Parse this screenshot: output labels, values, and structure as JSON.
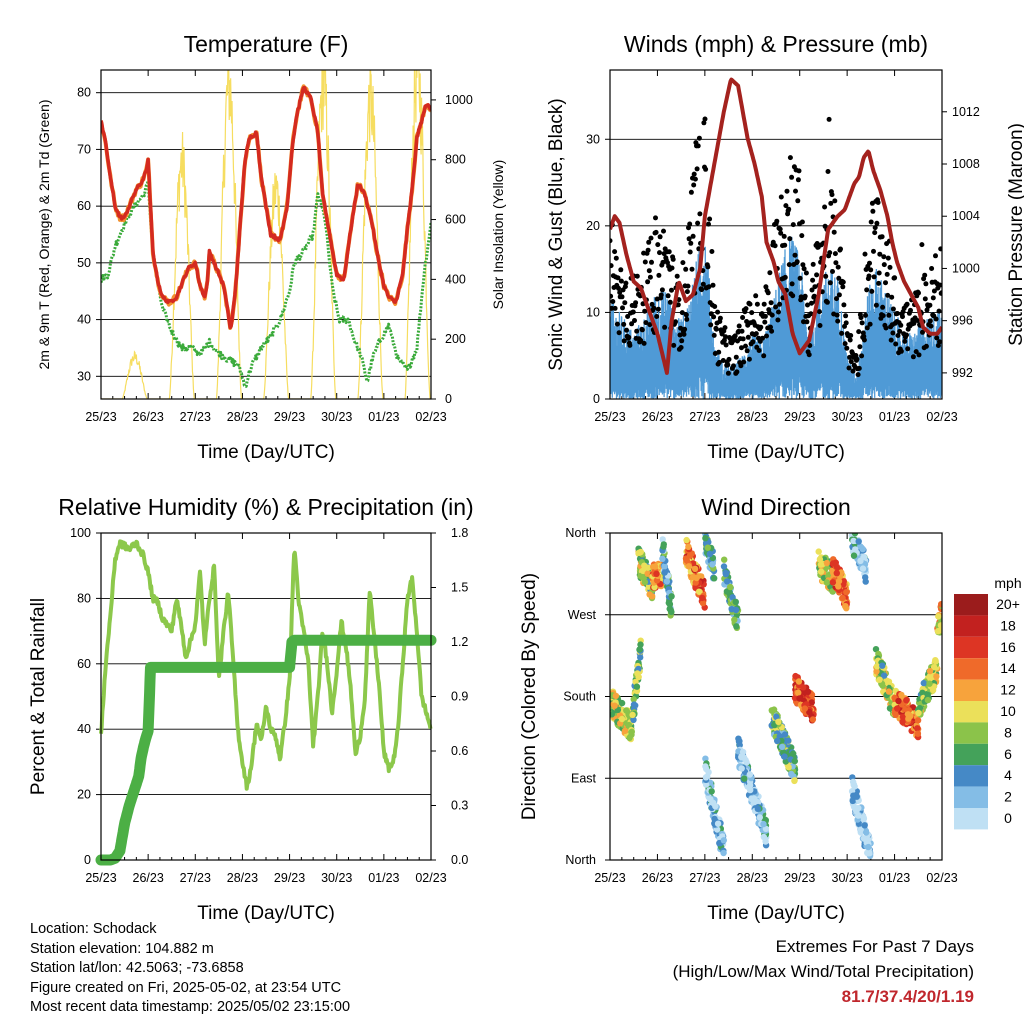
{
  "chart_data": [
    {
      "type": "line",
      "title": "Temperature (F)",
      "xlabel": "Time (Day/UTC)",
      "ylabel_left": "2m & 9m T (Red, Orange) & 2m Td (Green)",
      "ylabel_right": "Solar Insolation (Yellow)",
      "x_ticks": [
        "25/23",
        "26/23",
        "27/23",
        "28/23",
        "29/23",
        "30/23",
        "01/23",
        "02/23"
      ],
      "ylim_left": [
        26,
        84
      ],
      "y_ticks_left": [
        30,
        40,
        50,
        60,
        70,
        80
      ],
      "ylim_right": [
        0,
        1100
      ],
      "y_ticks_right": [
        0,
        200,
        400,
        600,
        800,
        1000
      ],
      "colors": {
        "t2m": "#d42a20",
        "t9m": "#f2902e",
        "td": "#3aaa3a",
        "solar": "#f6dd60"
      },
      "series": [
        {
          "key": "t2m",
          "x": [
            0,
            0.1,
            0.2,
            0.3,
            0.4,
            0.5,
            0.6,
            0.7,
            0.75,
            0.85,
            0.95,
            1.0,
            1.05,
            1.1,
            1.2,
            1.3,
            1.45,
            1.6,
            1.75,
            1.85,
            2.0,
            2.1,
            2.2,
            2.25,
            2.3,
            2.4,
            2.5,
            2.6,
            2.7,
            2.75,
            2.85,
            3.0,
            3.05,
            3.15,
            3.3,
            3.4,
            3.6,
            3.8,
            3.95,
            4.05,
            4.15,
            4.3,
            4.45,
            4.6,
            4.7,
            4.85,
            5.0,
            5.15,
            5.3,
            5.45,
            5.6,
            5.75,
            5.85,
            6.0,
            6.1,
            6.25,
            6.4,
            6.5,
            6.6,
            6.7,
            6.8,
            6.9,
            7.0
          ],
          "values": [
            75,
            71,
            65,
            60,
            58,
            58,
            60,
            62,
            63,
            64,
            66,
            68,
            60,
            52,
            47,
            44,
            43,
            44,
            47,
            49,
            50,
            46,
            44,
            46,
            52,
            50,
            48,
            46,
            41,
            38,
            45,
            62,
            68,
            72,
            73,
            65,
            55,
            54,
            60,
            70,
            76,
            81,
            79,
            73,
            62,
            55,
            48,
            47,
            56,
            64,
            62,
            57,
            52,
            46,
            44,
            43,
            48,
            56,
            63,
            72,
            75,
            78,
            77
          ]
        },
        {
          "key": "td",
          "x": [
            0,
            0.15,
            0.3,
            0.5,
            0.7,
            0.9,
            1.0,
            1.1,
            1.3,
            1.5,
            1.7,
            1.9,
            2.1,
            2.3,
            2.5,
            2.7,
            2.9,
            3.0,
            3.05,
            3.2,
            3.4,
            3.6,
            3.8,
            4.0,
            4.1,
            4.3,
            4.5,
            4.6,
            4.75,
            4.9,
            5.05,
            5.25,
            5.35,
            5.5,
            5.65,
            5.75,
            5.9,
            6.1,
            6.3,
            6.5,
            6.7,
            6.85,
            7.0
          ],
          "values": [
            47,
            48,
            53,
            57,
            60,
            62,
            64,
            52,
            42,
            38,
            35,
            35,
            34,
            36,
            34,
            33,
            32,
            30,
            28,
            32,
            35,
            37,
            40,
            45,
            50,
            52,
            55,
            62,
            58,
            46,
            40,
            40,
            37,
            34,
            29,
            33,
            36,
            39,
            33,
            31,
            35,
            48,
            57
          ]
        },
        {
          "key": "solar",
          "days": [
            0,
            1,
            2,
            3,
            4,
            5,
            6
          ],
          "peaks": [
            140,
            790,
            1050,
            700,
            1050,
            1000,
            1100
          ]
        }
      ]
    },
    {
      "type": "scatter",
      "title": "Winds (mph) & Pressure (mb)",
      "xlabel": "Time (Day/UTC)",
      "ylabel_left": "Sonic Wind & Gust (Blue, Black)",
      "ylabel_right": "Station Pressure (Maroon)",
      "x_ticks": [
        "25/23",
        "26/23",
        "27/23",
        "28/23",
        "29/23",
        "30/23",
        "01/23",
        "02/23"
      ],
      "ylim_left": [
        0,
        38
      ],
      "y_ticks_left": [
        0,
        10,
        20,
        30
      ],
      "ylim_right": [
        990.0,
        1015.2
      ],
      "y_ticks_right": [
        992,
        996,
        1000,
        1004,
        1008,
        1012
      ],
      "colors": {
        "wind": "#4f9ad6",
        "gust": "#000000",
        "pressure": "#a4221e"
      },
      "gust_envelope": {
        "x": [
          0,
          0.5,
          0.8,
          1.0,
          1.2,
          1.4,
          1.6,
          1.8,
          2.0,
          2.2,
          2.4,
          2.6,
          2.8,
          3.0,
          3.2,
          3.4,
          3.6,
          3.8,
          4.0,
          4.2,
          4.4,
          4.6,
          4.8,
          5.0,
          5.2,
          5.4,
          5.6,
          5.8,
          6.0,
          6.2,
          6.4,
          6.6,
          6.8,
          7.0
        ],
        "values": [
          16,
          12,
          15,
          17,
          18,
          12,
          14,
          24,
          28,
          10,
          7,
          6,
          8,
          11,
          9,
          14,
          22,
          26,
          22,
          10,
          18,
          22,
          18,
          8,
          4,
          16,
          20,
          16,
          12,
          10,
          10,
          12,
          13,
          14
        ]
      },
      "wind_envelope": {
        "x": [
          0,
          0.5,
          0.8,
          1.0,
          1.2,
          1.4,
          1.6,
          1.8,
          2.0,
          2.2,
          2.4,
          2.6,
          2.8,
          3.0,
          3.2,
          3.4,
          3.6,
          3.8,
          4.0,
          4.2,
          4.4,
          4.6,
          4.8,
          5.0,
          5.2,
          5.4,
          5.6,
          5.8,
          6.0,
          6.2,
          6.4,
          6.6,
          6.8,
          7.0
        ],
        "values": [
          9,
          6,
          8,
          10,
          10,
          7,
          8,
          12,
          16,
          5,
          3,
          3,
          4,
          6,
          5,
          8,
          12,
          15,
          13,
          6,
          10,
          12,
          11,
          4,
          2,
          9,
          12,
          10,
          8,
          6,
          6,
          7,
          8,
          8
        ]
      },
      "pressure": {
        "x": [
          0,
          0.1,
          0.2,
          0.35,
          0.5,
          0.65,
          0.8,
          0.9,
          1.0,
          1.1,
          1.2,
          1.3,
          1.45,
          1.6,
          1.75,
          1.9,
          2.0,
          2.2,
          2.4,
          2.55,
          2.7,
          2.8,
          2.9,
          3.05,
          3.2,
          3.3,
          3.45,
          3.55,
          3.7,
          3.85,
          4.0,
          4.2,
          4.4,
          4.6,
          4.8,
          4.95,
          5.05,
          5.15,
          5.25,
          5.35,
          5.45,
          5.55,
          5.7,
          5.85,
          5.95,
          6.05,
          6.2,
          6.35,
          6.5,
          6.6,
          6.75,
          6.9,
          7.0
        ],
        "values": [
          1003,
          1004,
          1003.5,
          1001,
          999,
          998.5,
          997,
          996,
          995,
          993.5,
          992,
          996,
          999,
          997.5,
          998,
          1000,
          1004,
          1008,
          1012,
          1014.5,
          1014,
          1012,
          1010,
          1008,
          1005.5,
          1002,
          1000.5,
          999,
          998,
          995,
          993.5,
          994.5,
          998,
          1003,
          1004,
          1004.5,
          1005.5,
          1006.5,
          1007,
          1008.5,
          1009,
          1007.5,
          1006,
          1004,
          1002,
          1000.5,
          999,
          998,
          997,
          995.5,
          995,
          995,
          995.5
        ]
      }
    },
    {
      "type": "line",
      "title": "Relative Humidity (%) & Precipitation (in)",
      "xlabel": "Time (Day/UTC)",
      "ylabel_left": "Percent & Total Rainfall",
      "x_ticks": [
        "25/23",
        "26/23",
        "27/23",
        "28/23",
        "29/23",
        "30/23",
        "01/23",
        "02/23"
      ],
      "ylim_left": [
        0,
        100
      ],
      "y_ticks_left": [
        0,
        20,
        40,
        60,
        80,
        100
      ],
      "ylim_right": [
        0,
        1.8
      ],
      "y_ticks_right": [
        "0.0",
        "0.3",
        "0.6",
        "0.9",
        "1.2",
        "1.5",
        "1.8"
      ],
      "colors": {
        "rh": "#8cc84b",
        "precip": "#4caf45"
      },
      "series": [
        {
          "key": "rh",
          "x": [
            0,
            0.1,
            0.2,
            0.3,
            0.4,
            0.5,
            0.6,
            0.75,
            0.9,
            1.0,
            1.1,
            1.2,
            1.3,
            1.4,
            1.5,
            1.6,
            1.7,
            1.8,
            2.0,
            2.1,
            2.2,
            2.3,
            2.4,
            2.5,
            2.6,
            2.7,
            2.8,
            2.9,
            3.0,
            3.1,
            3.2,
            3.3,
            3.4,
            3.5,
            3.6,
            3.7,
            3.8,
            3.9,
            4.0,
            4.1,
            4.2,
            4.3,
            4.4,
            4.5,
            4.6,
            4.7,
            4.8,
            4.9,
            5.0,
            5.1,
            5.2,
            5.3,
            5.4,
            5.5,
            5.6,
            5.7,
            5.8,
            5.9,
            6.0,
            6.1,
            6.2,
            6.3,
            6.4,
            6.5,
            6.6,
            6.7,
            6.8,
            6.9,
            7.0
          ],
          "values": [
            38,
            60,
            75,
            92,
            97,
            96,
            95,
            97,
            93,
            88,
            80,
            79,
            74,
            72,
            70,
            80,
            72,
            62,
            72,
            88,
            66,
            80,
            90,
            55,
            70,
            82,
            62,
            40,
            30,
            22,
            30,
            42,
            36,
            47,
            40,
            38,
            31,
            42,
            55,
            96,
            78,
            70,
            60,
            35,
            50,
            70,
            60,
            45,
            58,
            73,
            65,
            52,
            32,
            38,
            50,
            82,
            68,
            53,
            33,
            28,
            30,
            40,
            60,
            80,
            86,
            70,
            50,
            45,
            40
          ]
        },
        {
          "key": "precip",
          "x": [
            0,
            0.2,
            0.3,
            0.4,
            0.5,
            0.6,
            0.7,
            0.8,
            0.85,
            0.9,
            0.95,
            1.0,
            1.05,
            1.4,
            2.0,
            3.0,
            4.0,
            4.05,
            4.1,
            4.5,
            5.5,
            6.0,
            7.0
          ],
          "values": [
            0,
            0,
            0.01,
            0.05,
            0.2,
            0.3,
            0.38,
            0.46,
            0.56,
            0.62,
            0.67,
            0.71,
            1.06,
            1.06,
            1.06,
            1.06,
            1.06,
            1.2,
            1.21,
            1.21,
            1.21,
            1.21,
            1.21
          ]
        }
      ]
    },
    {
      "type": "scatter",
      "title": "Wind Direction",
      "xlabel": "Time (Day/UTC)",
      "ylabel_left": "Direction (Colored By Speed)",
      "x_ticks": [
        "25/23",
        "26/23",
        "27/23",
        "28/23",
        "29/23",
        "30/23",
        "01/23",
        "02/23"
      ],
      "y_ticks_left": [
        "North",
        "East",
        "South",
        "West",
        "North"
      ],
      "ylim_left": [
        0,
        360
      ],
      "legend_title": "mph",
      "legend_labels": [
        "20+",
        "18",
        "16",
        "14",
        "12",
        "10",
        "8",
        "6",
        "4",
        "2",
        "0"
      ],
      "legend_colors": [
        "#9b1c1c",
        "#c2211f",
        "#dd3524",
        "#ef6a2a",
        "#f7a33c",
        "#ebe05a",
        "#8bc34a",
        "#44a25a",
        "#4589c6",
        "#84bde6",
        "#bfe0f4"
      ],
      "clusters": [
        {
          "x0": 0.0,
          "x1": 0.45,
          "dir0": 175,
          "dir1": 145,
          "speed": 9
        },
        {
          "x0": 0.45,
          "x1": 0.65,
          "dir0": 150,
          "dir1": 230,
          "speed": 7
        },
        {
          "x0": 0.6,
          "x1": 0.9,
          "dir0": 330,
          "dir1": 300,
          "speed": 8
        },
        {
          "x0": 0.9,
          "x1": 1.1,
          "dir0": 310,
          "dir1": 315,
          "speed": 13
        },
        {
          "x0": 1.1,
          "x1": 1.3,
          "dir0": 345,
          "dir1": 275,
          "speed": 4
        },
        {
          "x0": 1.6,
          "x1": 2.0,
          "dir0": 340,
          "dir1": 290,
          "speed": 14
        },
        {
          "x0": 2.0,
          "x1": 2.2,
          "dir0": 355,
          "dir1": 320,
          "speed": 5
        },
        {
          "x0": 2.0,
          "x1": 2.4,
          "dir0": 100,
          "dir1": 10,
          "speed": 2
        },
        {
          "x0": 2.4,
          "x1": 2.7,
          "dir0": 320,
          "dir1": 260,
          "speed": 5
        },
        {
          "x0": 2.7,
          "x1": 3.3,
          "dir0": 120,
          "dir1": 30,
          "speed": 2
        },
        {
          "x0": 3.4,
          "x1": 3.9,
          "dir0": 160,
          "dir1": 100,
          "speed": 6
        },
        {
          "x0": 3.9,
          "x1": 4.3,
          "dir0": 190,
          "dir1": 165,
          "speed": 15
        },
        {
          "x0": 4.4,
          "x1": 4.7,
          "dir0": 325,
          "dir1": 310,
          "speed": 9
        },
        {
          "x0": 4.7,
          "x1": 5.0,
          "dir0": 320,
          "dir1": 290,
          "speed": 14
        },
        {
          "x0": 5.1,
          "x1": 5.4,
          "dir0": 355,
          "dir1": 320,
          "speed": 2
        },
        {
          "x0": 5.1,
          "x1": 5.5,
          "dir0": 80,
          "dir1": 5,
          "speed": 1
        },
        {
          "x0": 5.6,
          "x1": 6.0,
          "dir0": 220,
          "dir1": 170,
          "speed": 8
        },
        {
          "x0": 6.0,
          "x1": 6.5,
          "dir0": 175,
          "dir1": 150,
          "speed": 14
        },
        {
          "x0": 6.5,
          "x1": 6.9,
          "dir0": 170,
          "dir1": 210,
          "speed": 8
        },
        {
          "x0": 6.9,
          "x1": 7.0,
          "dir0": 250,
          "dir1": 270,
          "speed": 11
        }
      ]
    }
  ],
  "info": {
    "location": "Location: Schodack",
    "elevation": "Station elevation: 104.882 m",
    "latlon": "Station lat/lon: 42.5063; -73.6858",
    "created": "Figure created on Fri, 2025-05-02, at 23:54 UTC",
    "recent": "Most recent data timestamp: 2025/05/02 23:15:00"
  },
  "extremes": {
    "line1": "Extremes For Past 7 Days",
    "line2": "(High/Low/Max Wind/Total Precipitation)",
    "values": "81.7/37.4/20/1.19"
  }
}
